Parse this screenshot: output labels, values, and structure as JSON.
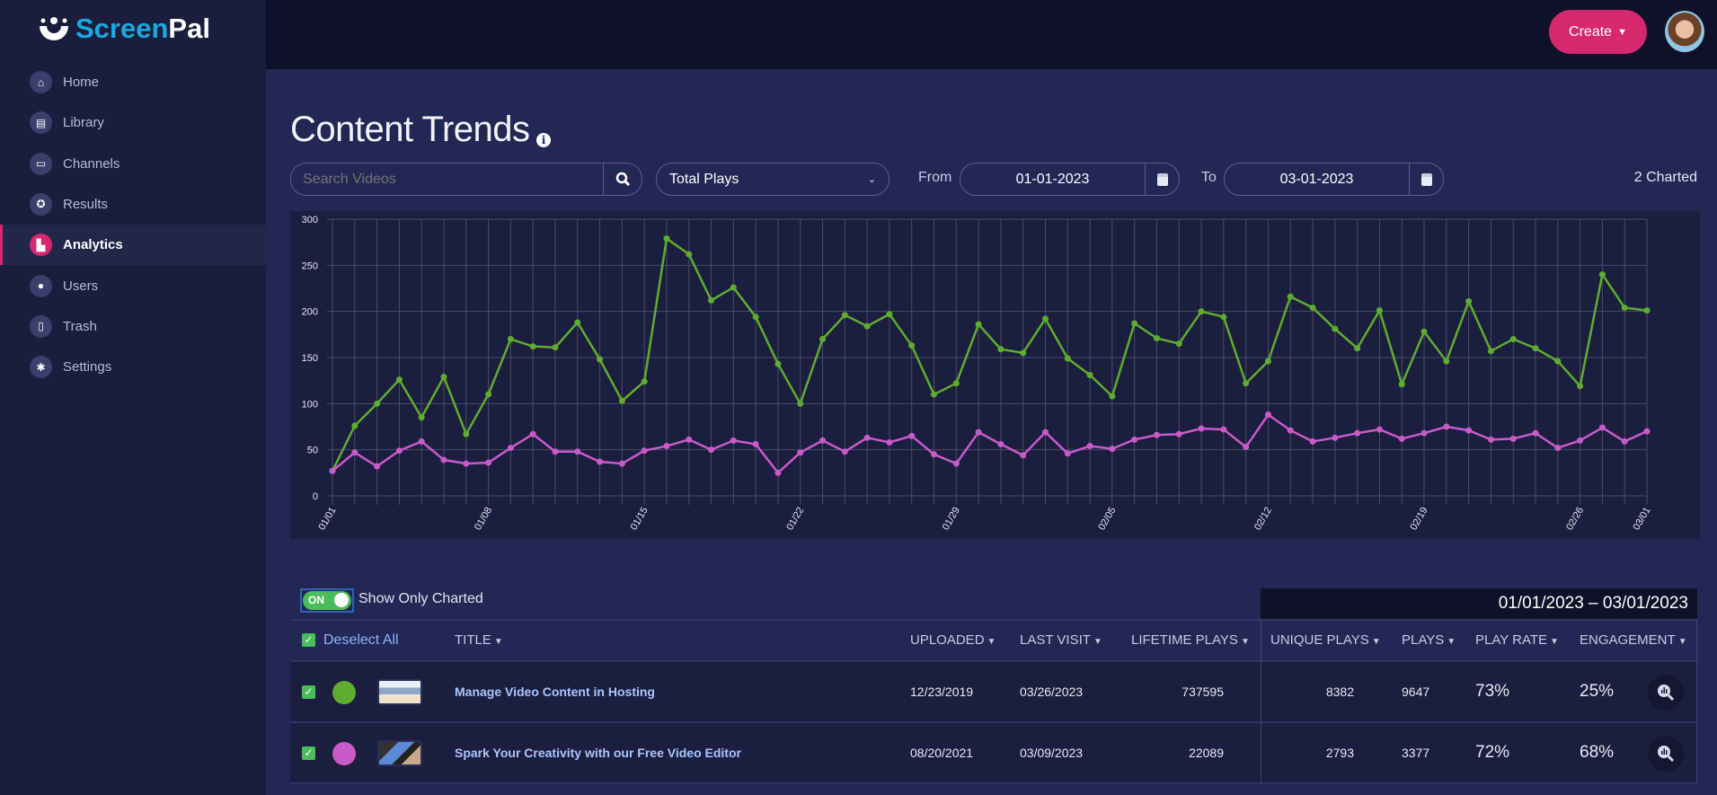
{
  "app": {
    "logo": "ScreenPal",
    "logo_a": "Screen",
    "logo_b": "Pal"
  },
  "sidebar": {
    "items": [
      {
        "label": "Home",
        "icon": "home-icon"
      },
      {
        "label": "Library",
        "icon": "folder-icon"
      },
      {
        "label": "Channels",
        "icon": "monitor-icon"
      },
      {
        "label": "Results",
        "icon": "award-icon"
      },
      {
        "label": "Analytics",
        "icon": "chart-icon",
        "active": true
      },
      {
        "label": "Users",
        "icon": "user-icon"
      },
      {
        "label": "Trash",
        "icon": "trash-icon"
      },
      {
        "label": "Settings",
        "icon": "gear-icon"
      }
    ]
  },
  "header": {
    "create_label": "Create"
  },
  "page": {
    "title": "Content Trends",
    "search_placeholder": "Search Videos",
    "metric": "Total Plays",
    "from_label": "From",
    "from_date": "01-01-2023",
    "to_label": "To",
    "to_date": "03-01-2023",
    "charted_count": "2 Charted"
  },
  "table": {
    "toggle_state": "ON",
    "toggle_label": "Show Only Charted",
    "date_range": "01/01/2023 – 03/01/2023",
    "deselect_label": "Deselect All",
    "headers": {
      "title": "TITLE",
      "uploaded": "UPLOADED",
      "last_visit": "LAST VISIT",
      "lifetime_plays": "LIFETIME PLAYS",
      "unique_plays": "UNIQUE PLAYS",
      "plays": "PLAYS",
      "play_rate": "PLAY RATE",
      "engagement": "ENGAGEMENT"
    },
    "rows": [
      {
        "color": "#5fac2f",
        "title": "Manage Video Content in Hosting",
        "uploaded": "12/23/2019",
        "last_visit": "03/26/2023",
        "lifetime_plays": "737595",
        "unique_plays": "8382",
        "plays": "9647",
        "play_rate": "73%",
        "engagement": "25%"
      },
      {
        "color": "#c95bc9",
        "title": "Spark Your Creativity with our Free Video Editor",
        "uploaded": "08/20/2021",
        "last_visit": "03/09/2023",
        "lifetime_plays": "22089",
        "unique_plays": "2793",
        "plays": "3377",
        "play_rate": "72%",
        "engagement": "68%"
      }
    ]
  },
  "chart_data": {
    "type": "line",
    "title": "",
    "xlabel": "",
    "ylabel": "",
    "ylim": [
      0,
      300
    ],
    "yticks": [
      0,
      50,
      100,
      150,
      200,
      250,
      300
    ],
    "grid": true,
    "x_start": "01/01",
    "x_days": 60,
    "xtick_labels": [
      "01/01",
      "01/08",
      "01/15",
      "01/22",
      "01/29",
      "02/05",
      "02/12",
      "02/19",
      "02/26",
      "03/01"
    ],
    "xtick_index": [
      0,
      7,
      14,
      21,
      28,
      35,
      42,
      49,
      56,
      59
    ],
    "series": [
      {
        "name": "Manage Video Content in Hosting",
        "color": "#5fac2f",
        "values": [
          27,
          76,
          100,
          126,
          85,
          129,
          67,
          110,
          170,
          162,
          161,
          188,
          148,
          103,
          124,
          279,
          262,
          212,
          226,
          194,
          143,
          100,
          170,
          196,
          184,
          197,
          163,
          110,
          122,
          186,
          159,
          155,
          192,
          149,
          131,
          108,
          187,
          171,
          165,
          200,
          194,
          122,
          146,
          216,
          204,
          181,
          160,
          201,
          121,
          178,
          146,
          211,
          157,
          170,
          160,
          146,
          119,
          240,
          204,
          201
        ]
      },
      {
        "name": "Spark Your Creativity with our Free Video Editor",
        "color": "#c95bc9",
        "values": [
          27,
          47,
          32,
          49,
          59,
          39,
          35,
          36,
          52,
          67,
          48,
          48,
          37,
          35,
          49,
          54,
          61,
          50,
          60,
          56,
          25,
          47,
          60,
          48,
          63,
          58,
          65,
          45,
          35,
          69,
          56,
          44,
          69,
          46,
          54,
          51,
          61,
          66,
          67,
          73,
          72,
          53,
          88,
          71,
          59,
          63,
          68,
          72,
          62,
          68,
          75,
          71,
          61,
          62,
          68,
          52,
          60,
          74,
          59,
          70
        ]
      }
    ]
  }
}
